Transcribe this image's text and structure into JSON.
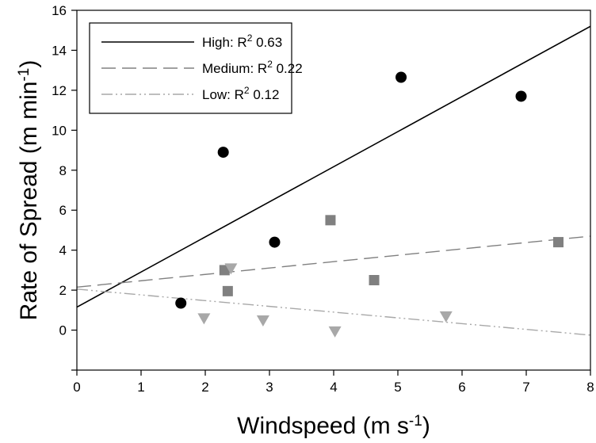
{
  "chart_data": {
    "type": "scatter",
    "xlabel": {
      "main": "Windspeed (m s",
      "sup": "-1",
      "close": ")"
    },
    "ylabel": {
      "main": "Rate of Spread (m min",
      "sup": "-1",
      "close": ")"
    },
    "xlim": [
      0,
      8
    ],
    "ylim": [
      -2,
      16
    ],
    "xticks": [
      0,
      1,
      2,
      3,
      4,
      5,
      6,
      7,
      8
    ],
    "yticks": [
      0,
      2,
      4,
      6,
      8,
      10,
      12,
      14,
      16
    ],
    "grid": false,
    "legend_position": "top-left",
    "series": [
      {
        "name": "High",
        "legend": {
          "prefix": "High: R",
          "sup": "2",
          "suffix": " 0.63"
        },
        "marker": "circle",
        "marker_color": "#000000",
        "line_color": "#000000",
        "line_style": "solid",
        "points": [
          {
            "x": 1.62,
            "y": 1.35
          },
          {
            "x": 2.28,
            "y": 8.9
          },
          {
            "x": 3.08,
            "y": 4.4
          },
          {
            "x": 5.05,
            "y": 12.65
          },
          {
            "x": 6.92,
            "y": 11.7
          }
        ],
        "fit": {
          "x": [
            0,
            8
          ],
          "y": [
            1.15,
            15.2
          ]
        }
      },
      {
        "name": "Medium",
        "legend": {
          "prefix": "Medium: R",
          "sup": "2",
          "suffix": " 0.22"
        },
        "marker": "square",
        "marker_color": "#808080",
        "line_color": "#808080",
        "line_style": "dashed",
        "points": [
          {
            "x": 2.3,
            "y": 3.0
          },
          {
            "x": 2.35,
            "y": 1.95
          },
          {
            "x": 3.95,
            "y": 5.5
          },
          {
            "x": 4.63,
            "y": 2.5
          },
          {
            "x": 7.5,
            "y": 4.4
          }
        ],
        "fit": {
          "x": [
            0,
            8
          ],
          "y": [
            2.15,
            4.7
          ]
        }
      },
      {
        "name": "Low",
        "legend": {
          "prefix": "Low: R",
          "sup": "2",
          "suffix": " 0.12"
        },
        "marker": "triangle-down",
        "marker_color": "#a8a8a8",
        "line_color": "#a8a8a8",
        "line_style": "dashdotdot",
        "points": [
          {
            "x": 1.98,
            "y": 0.6
          },
          {
            "x": 2.4,
            "y": 3.1
          },
          {
            "x": 2.9,
            "y": 0.5
          },
          {
            "x": 4.02,
            "y": -0.05
          },
          {
            "x": 5.75,
            "y": 0.7
          }
        ],
        "fit": {
          "x": [
            0,
            8
          ],
          "y": [
            2.05,
            -0.25
          ]
        }
      }
    ]
  }
}
